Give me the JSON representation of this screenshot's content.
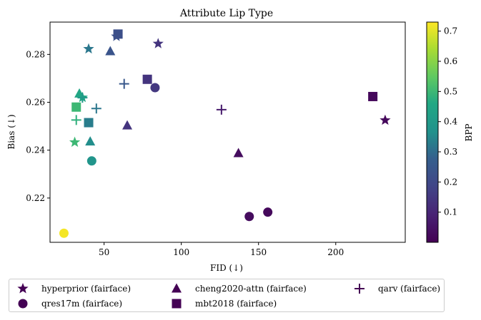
{
  "chart_data": {
    "type": "scatter",
    "title": "Attribute Lip Type",
    "xlabel": "FID (↓)",
    "ylabel": "Bias (↓)",
    "xlim": [
      15,
      245
    ],
    "ylim": [
      0.2015,
      0.2935
    ],
    "xticks": [
      50,
      100,
      150,
      200
    ],
    "xtick_labels": [
      "50",
      "100",
      "150",
      "200"
    ],
    "yticks": [
      0.22,
      0.24,
      0.26,
      0.28
    ],
    "ytick_labels": [
      "0.22",
      "0.24",
      "0.26",
      "0.28"
    ],
    "grid": false,
    "legend_placement": "below",
    "colorbar": {
      "label": "BPP",
      "range": [
        0.0,
        0.73
      ],
      "ticks": [
        0.1,
        0.2,
        0.3,
        0.4,
        0.5,
        0.6,
        0.7
      ],
      "tick_labels": [
        "0.1",
        "0.2",
        "0.3",
        "0.4",
        "0.5",
        "0.6",
        "0.7"
      ],
      "colormap": "viridis"
    },
    "series": [
      {
        "name": "hyperprior (fairface)",
        "marker": "star",
        "points": [
          {
            "x": 232,
            "y": 0.2525,
            "bpp": 0.02
          },
          {
            "x": 85,
            "y": 0.2845,
            "bpp": 0.14
          },
          {
            "x": 58,
            "y": 0.2875,
            "bpp": 0.23
          },
          {
            "x": 40,
            "y": 0.2823,
            "bpp": 0.32
          },
          {
            "x": 36,
            "y": 0.262,
            "bpp": 0.45
          },
          {
            "x": 31,
            "y": 0.2433,
            "bpp": 0.5
          }
        ]
      },
      {
        "name": "qres17m (fairface)",
        "marker": "circle",
        "points": [
          {
            "x": 156,
            "y": 0.2141,
            "bpp": 0.02
          },
          {
            "x": 144,
            "y": 0.2123,
            "bpp": 0.03
          },
          {
            "x": 83,
            "y": 0.2661,
            "bpp": 0.15
          },
          {
            "x": 42,
            "y": 0.2355,
            "bpp": 0.38
          },
          {
            "x": 24,
            "y": 0.2053,
            "bpp": 0.72
          }
        ]
      },
      {
        "name": "cheng2020-attn (fairface)",
        "marker": "triangle",
        "points": [
          {
            "x": 137,
            "y": 0.2387,
            "bpp": 0.03
          },
          {
            "x": 65,
            "y": 0.2503,
            "bpp": 0.14
          },
          {
            "x": 54,
            "y": 0.2813,
            "bpp": 0.24
          },
          {
            "x": 41,
            "y": 0.2436,
            "bpp": 0.36
          },
          {
            "x": 34,
            "y": 0.2636,
            "bpp": 0.45
          }
        ]
      },
      {
        "name": "mbt2018 (fairface)",
        "marker": "square",
        "points": [
          {
            "x": 224,
            "y": 0.2624,
            "bpp": 0.02
          },
          {
            "x": 78,
            "y": 0.2696,
            "bpp": 0.14
          },
          {
            "x": 59,
            "y": 0.2885,
            "bpp": 0.22
          },
          {
            "x": 40,
            "y": 0.2515,
            "bpp": 0.33
          },
          {
            "x": 32,
            "y": 0.258,
            "bpp": 0.5
          }
        ]
      },
      {
        "name": "qarv (fairface)",
        "marker": "plus",
        "points": [
          {
            "x": 126,
            "y": 0.2569,
            "bpp": 0.07
          },
          {
            "x": 63,
            "y": 0.2677,
            "bpp": 0.25
          },
          {
            "x": 45,
            "y": 0.2574,
            "bpp": 0.32
          },
          {
            "x": 36,
            "y": 0.2619,
            "bpp": 0.4
          },
          {
            "x": 32,
            "y": 0.2526,
            "bpp": 0.48
          }
        ]
      }
    ]
  }
}
